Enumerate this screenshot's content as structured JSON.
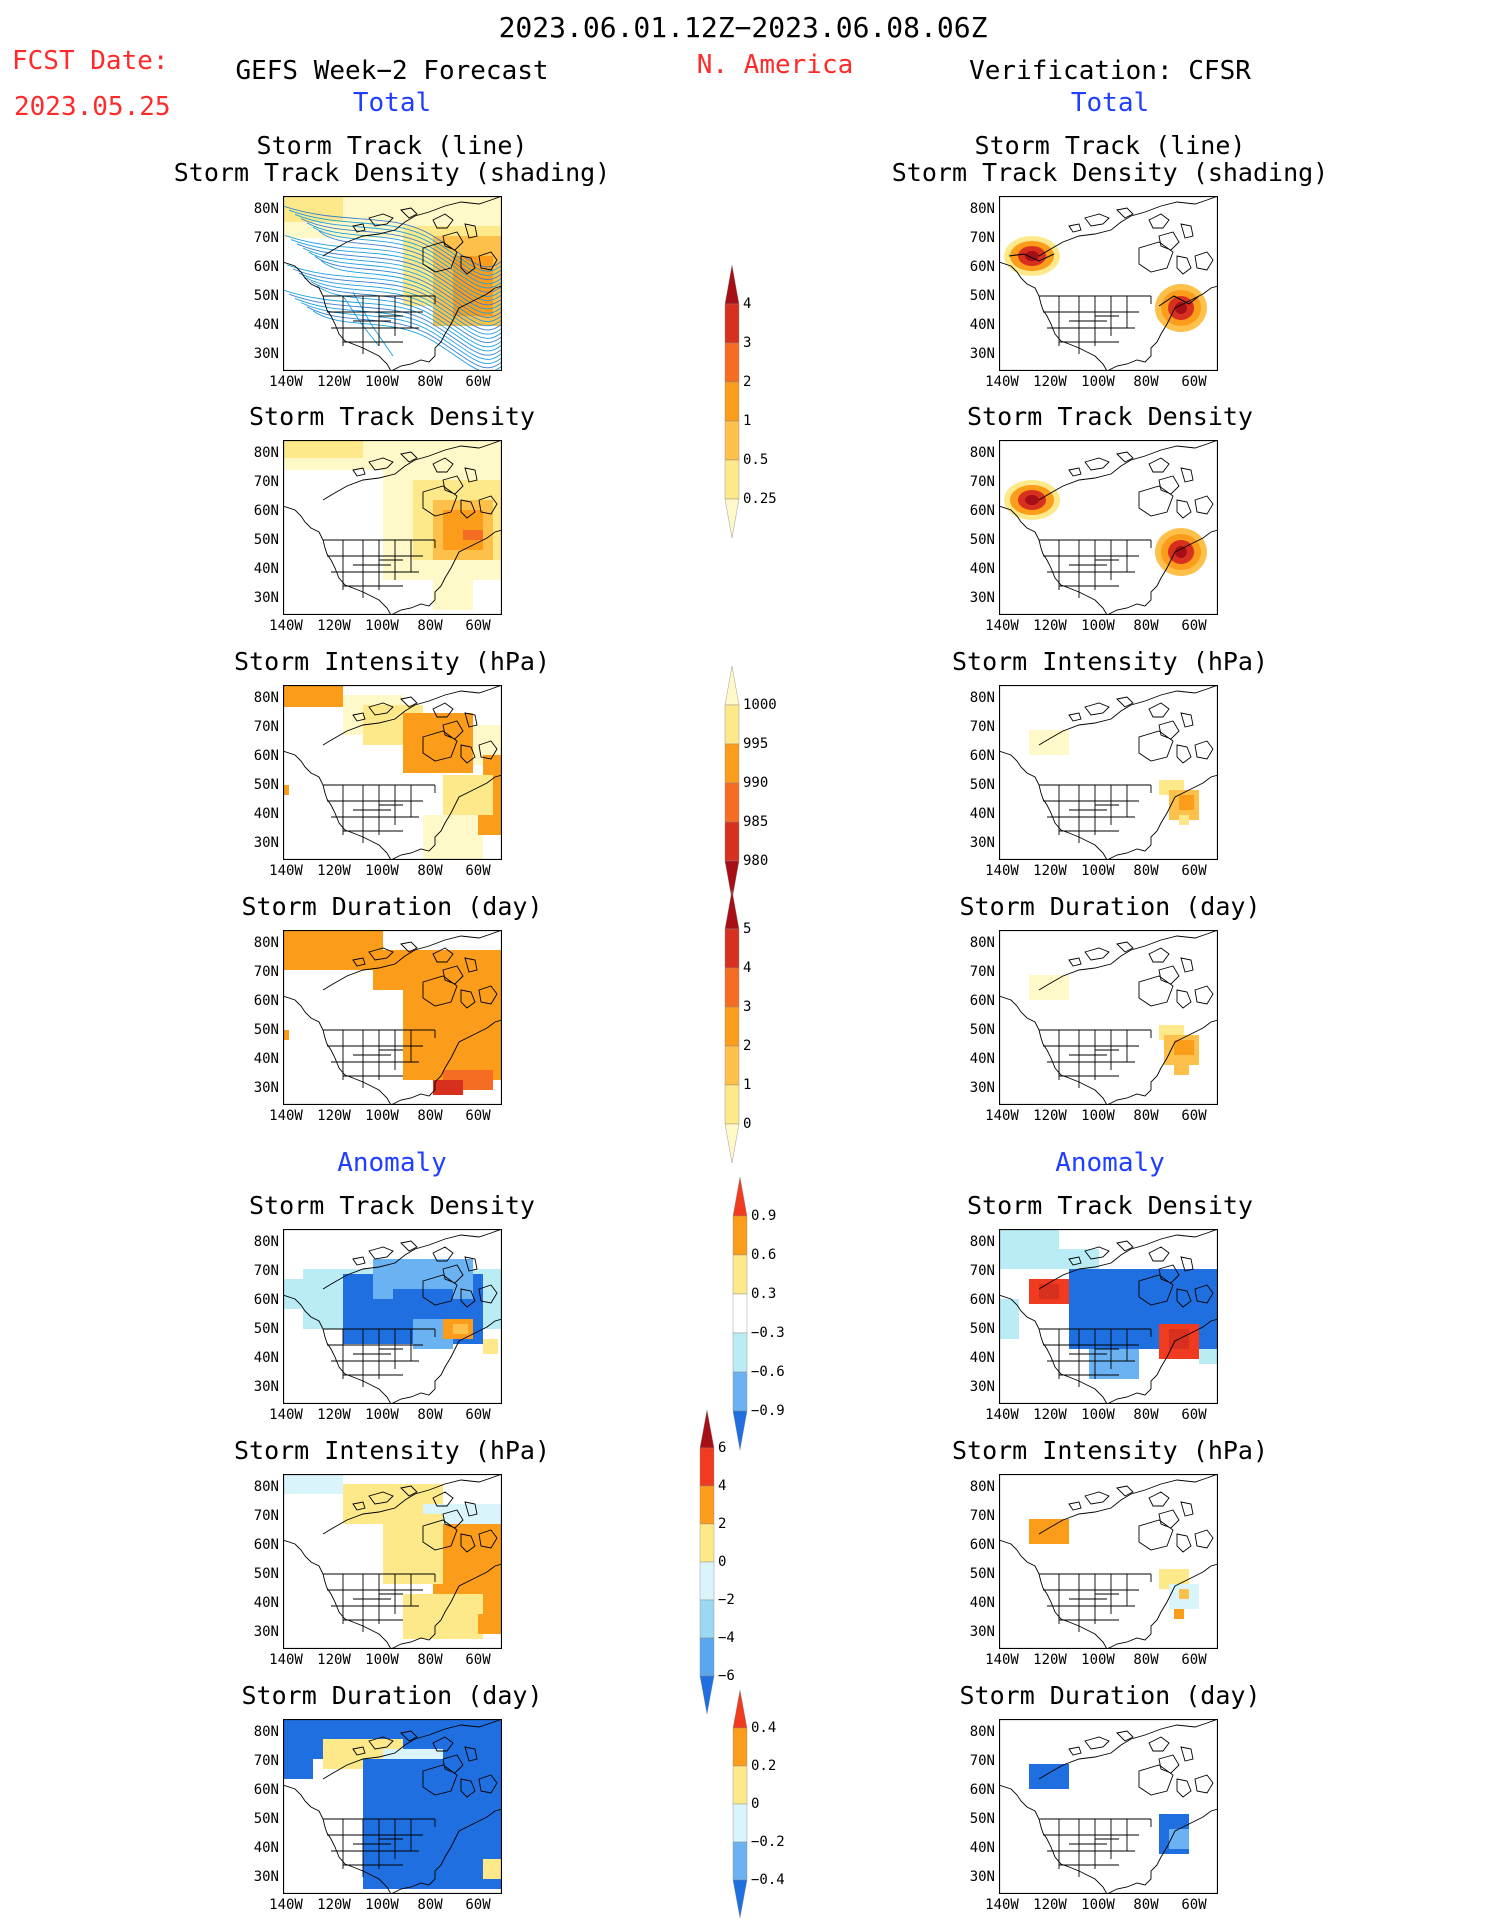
{
  "header": {
    "date_range": "2023.06.01.12Z−2023.06.08.06Z",
    "fcst_label": "FCST Date:",
    "fcst_date": "2023.05.25",
    "forecast_title": "GEFS Week−2 Forecast",
    "region": "N. America",
    "verification_title": "Verification: CFSR",
    "total_left": "Total",
    "total_right": "Total",
    "anomaly_left": "Anomaly",
    "anomaly_right": "Anomaly"
  },
  "panel_titles": {
    "storm_track_line": "Storm Track (line)",
    "storm_track_density_shading": "Storm Track Density (shading)",
    "storm_track_density": "Storm Track Density",
    "storm_intensity": "Storm Intensity (hPa)",
    "storm_duration": "Storm Duration (day)"
  },
  "axes": {
    "lat_ticks": [
      "80N",
      "70N",
      "60N",
      "50N",
      "40N",
      "30N"
    ],
    "lon_ticks": [
      "140W",
      "120W",
      "100W",
      "80W",
      "60W"
    ]
  },
  "colorbars": {
    "density": {
      "labels": [
        "4",
        "3",
        "2",
        "1",
        "0.5",
        "0.25"
      ],
      "colors": [
        "#a50f15",
        "#d7301f",
        "#f46d23",
        "#fb9c1b",
        "#fdc04a",
        "#fde88a",
        "#fff8c8"
      ]
    },
    "intensity": {
      "labels": [
        "1000",
        "995",
        "990",
        "985",
        "980"
      ],
      "colors": [
        "#fff8c8",
        "#fde88a",
        "#fb9c1b",
        "#f46d23",
        "#d7301f",
        "#a50f15"
      ]
    },
    "duration": {
      "labels": [
        "5",
        "4",
        "3",
        "2",
        "1",
        "0"
      ],
      "colors": [
        "#a50f15",
        "#d7301f",
        "#f46d23",
        "#fb9c1b",
        "#fdc04a",
        "#fde88a",
        "#fff8c8"
      ]
    },
    "anom_density": {
      "labels": [
        "0.9",
        "0.6",
        "0.3",
        "−0.3",
        "−0.6",
        "−0.9"
      ],
      "colors": [
        "#f03b20",
        "#fb9c1b",
        "#fde88a",
        "#ffffff",
        "#b9ecf5",
        "#6ab2f2",
        "#1f6fe0"
      ]
    },
    "anom_intensity": {
      "labels": [
        "6",
        "4",
        "2",
        "0",
        "−2",
        "−4",
        "−6"
      ],
      "colors": [
        "#a50f15",
        "#f03b20",
        "#fb9c1b",
        "#fde88a",
        "#d9f5fb",
        "#9ad8f3",
        "#5aa6ef",
        "#1f6fe0"
      ]
    },
    "anom_duration": {
      "labels": [
        "0.4",
        "0.2",
        "0",
        "−0.2",
        "−0.4"
      ],
      "colors": [
        "#f03b20",
        "#fb9c1b",
        "#fde88a",
        "#d9f5fb",
        "#6ab2f2",
        "#1f6fe0"
      ]
    }
  }
}
